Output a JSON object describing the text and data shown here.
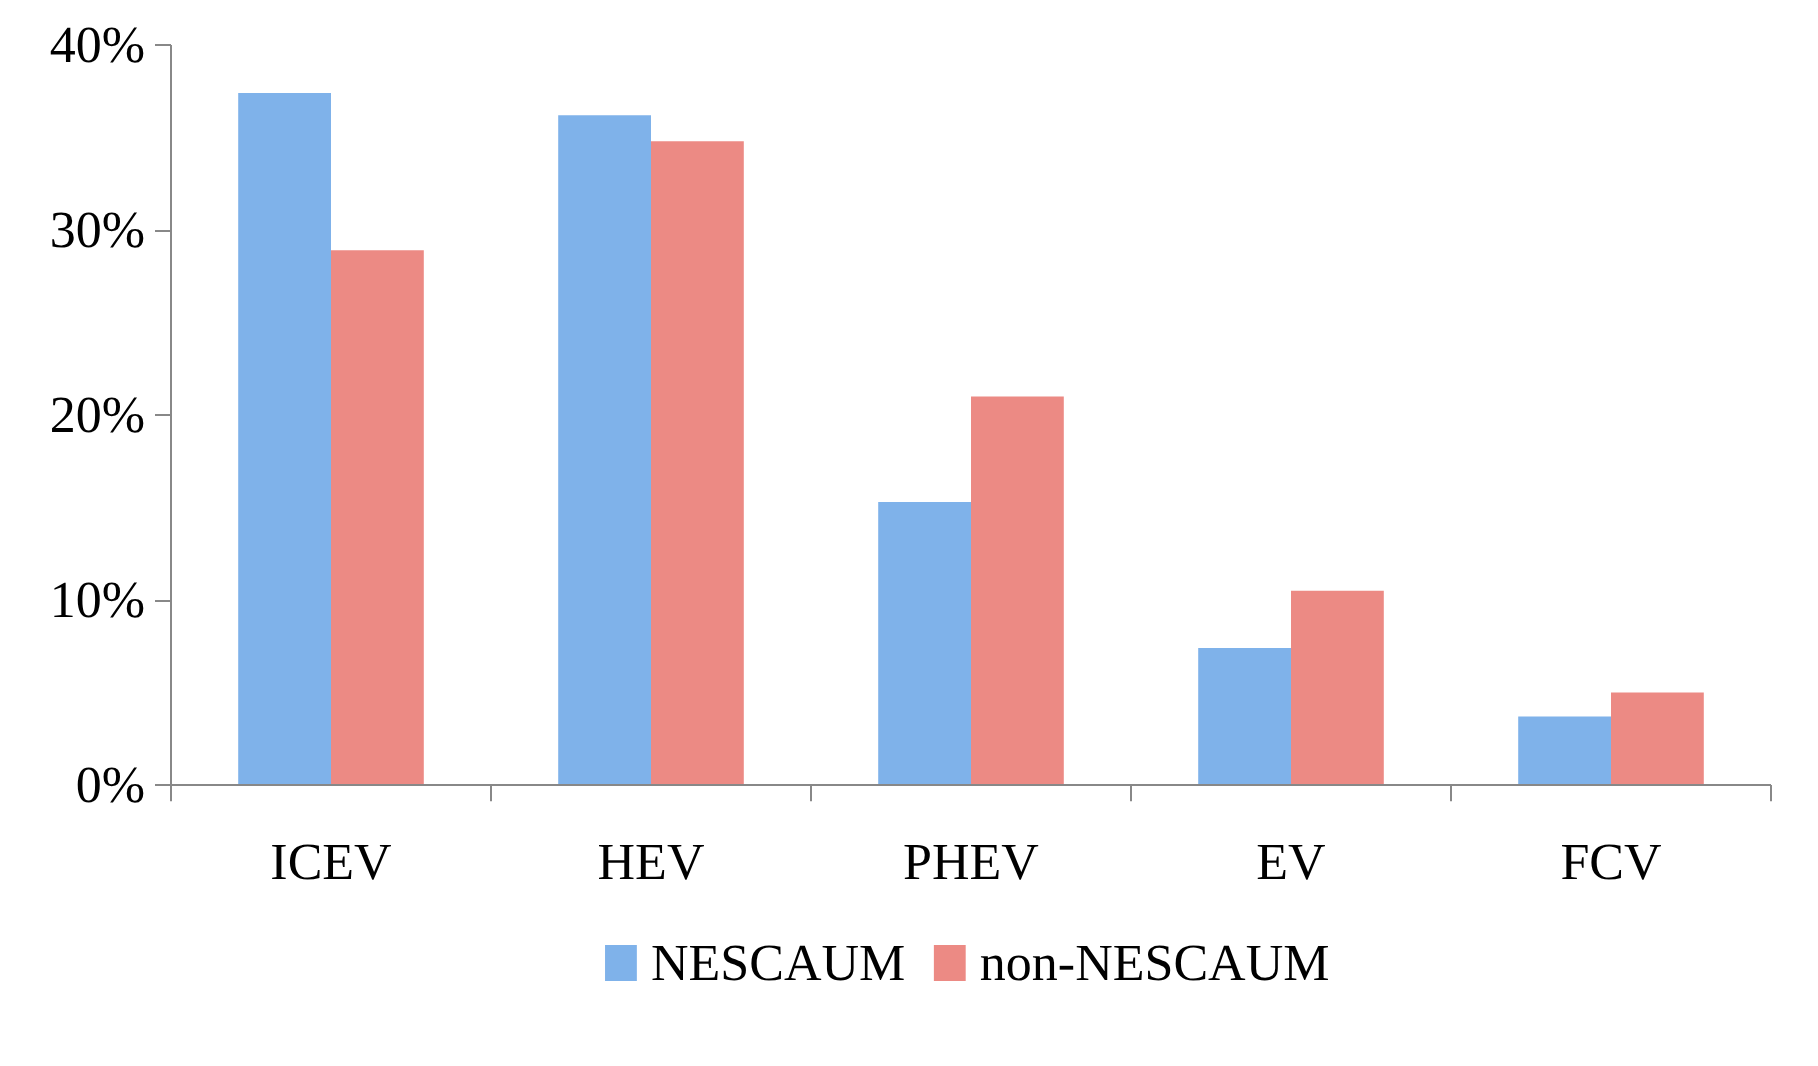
{
  "chart_data": {
    "type": "bar",
    "categories": [
      "ICEV",
      "HEV",
      "PHEV",
      "EV",
      "FCV"
    ],
    "series": [
      {
        "name": "NESCAUM",
        "color": "#7fb2ea",
        "values": [
          37.4,
          36.2,
          15.3,
          7.4,
          3.7
        ]
      },
      {
        "name": "non-NESCAUM",
        "color": "#ec8a84",
        "values": [
          28.9,
          34.8,
          21.0,
          10.5,
          5.0
        ]
      }
    ],
    "ylim": [
      0,
      40
    ],
    "yticks": [
      {
        "value": 0,
        "label": "0%"
      },
      {
        "value": 10,
        "label": "10%"
      },
      {
        "value": 20,
        "label": "20%"
      },
      {
        "value": 30,
        "label": "30%"
      },
      {
        "value": 40,
        "label": "40%"
      }
    ],
    "grid": false,
    "legend": "bottom"
  }
}
